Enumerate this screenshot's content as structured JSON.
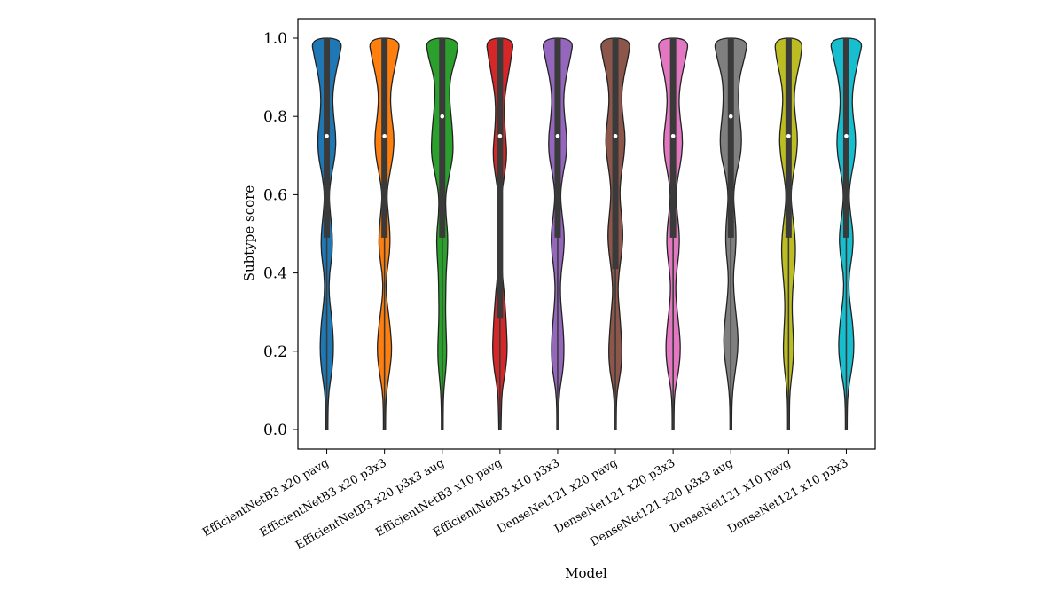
{
  "chart_data": {
    "type": "violin",
    "xlabel": "Model",
    "ylabel": "Subtype score",
    "ylim": [
      -0.05,
      1.05
    ],
    "yticks": [
      0.0,
      0.2,
      0.4,
      0.6,
      0.8,
      1.0
    ],
    "ytick_labels": [
      "0.0",
      "0.2",
      "0.4",
      "0.6",
      "0.8",
      "1.0"
    ],
    "grid": false,
    "legend": "none",
    "categories": [
      "EfficientNetB3 x20 pavg",
      "EfficientNetB3 x20 p3x3",
      "EfficientNetB3 x20 p3x3 aug",
      "EfficientNetB3 x10 pavg",
      "EfficientNetB3 x10 p3x3",
      "DenseNet121 x20 pavg",
      "DenseNet121 x20 p3x3",
      "DenseNet121 x20 p3x3 aug",
      "DenseNet121 x10 pavg",
      "DenseNet121 x10 p3x3"
    ],
    "colors": [
      "#1f77b4",
      "#ff7f0e",
      "#2ca02c",
      "#d62728",
      "#9467bd",
      "#8c564b",
      "#e377c2",
      "#7f7f7f",
      "#bcbd22",
      "#17becf"
    ],
    "density_y": [
      0.0,
      0.05,
      0.1,
      0.15,
      0.2,
      0.25,
      0.3,
      0.35,
      0.4,
      0.45,
      0.5,
      0.55,
      0.6,
      0.65,
      0.7,
      0.75,
      0.8,
      0.85,
      0.9,
      0.95,
      1.0
    ],
    "series": [
      {
        "density": [
          0.06,
          0.06,
          0.12,
          0.3,
          0.38,
          0.35,
          0.24,
          0.12,
          0.15,
          0.32,
          0.32,
          0.2,
          0.12,
          0.26,
          0.48,
          0.52,
          0.38,
          0.32,
          0.45,
          0.7,
          0.9
        ],
        "median": 0.75,
        "q1": 0.49,
        "q3": 1.0
      },
      {
        "density": [
          0.06,
          0.06,
          0.12,
          0.3,
          0.42,
          0.35,
          0.22,
          0.08,
          0.12,
          0.3,
          0.32,
          0.22,
          0.12,
          0.28,
          0.5,
          0.55,
          0.4,
          0.32,
          0.46,
          0.72,
          0.9
        ],
        "median": 0.75,
        "q1": 0.49,
        "q3": 1.0
      },
      {
        "density": [
          0.05,
          0.05,
          0.08,
          0.2,
          0.26,
          0.22,
          0.18,
          0.2,
          0.22,
          0.3,
          0.32,
          0.2,
          0.18,
          0.4,
          0.62,
          0.6,
          0.5,
          0.4,
          0.45,
          0.78,
          0.96
        ],
        "median": 0.8,
        "q1": 0.49,
        "q3": 1.0
      },
      {
        "density": [
          0.06,
          0.08,
          0.12,
          0.32,
          0.42,
          0.38,
          0.32,
          0.24,
          0.12,
          0.1,
          0.14,
          0.08,
          0.08,
          0.26,
          0.4,
          0.32,
          0.24,
          0.26,
          0.45,
          0.64,
          0.8
        ],
        "median": 0.75,
        "q1": 0.285,
        "q3": 1.0
      },
      {
        "density": [
          0.05,
          0.05,
          0.1,
          0.3,
          0.36,
          0.32,
          0.22,
          0.14,
          0.18,
          0.34,
          0.38,
          0.24,
          0.14,
          0.28,
          0.5,
          0.52,
          0.38,
          0.32,
          0.46,
          0.72,
          0.9
        ],
        "median": 0.75,
        "q1": 0.49,
        "q3": 1.0
      },
      {
        "density": [
          0.05,
          0.05,
          0.1,
          0.32,
          0.38,
          0.32,
          0.24,
          0.14,
          0.2,
          0.36,
          0.44,
          0.34,
          0.24,
          0.32,
          0.5,
          0.56,
          0.42,
          0.34,
          0.46,
          0.72,
          0.88
        ],
        "median": 0.75,
        "q1": 0.41,
        "q3": 1.0
      },
      {
        "density": [
          0.05,
          0.05,
          0.1,
          0.32,
          0.42,
          0.36,
          0.24,
          0.14,
          0.18,
          0.34,
          0.36,
          0.24,
          0.14,
          0.28,
          0.5,
          0.54,
          0.38,
          0.32,
          0.46,
          0.72,
          0.9
        ],
        "median": 0.75,
        "q1": 0.49,
        "q3": 1.0
      },
      {
        "density": [
          0.05,
          0.05,
          0.1,
          0.25,
          0.4,
          0.4,
          0.28,
          0.16,
          0.14,
          0.26,
          0.3,
          0.22,
          0.14,
          0.28,
          0.56,
          0.62,
          0.48,
          0.42,
          0.48,
          0.78,
          0.98
        ],
        "median": 0.8,
        "q1": 0.49,
        "q3": 1.0
      },
      {
        "density": [
          0.05,
          0.05,
          0.08,
          0.22,
          0.3,
          0.26,
          0.2,
          0.22,
          0.32,
          0.4,
          0.36,
          0.22,
          0.12,
          0.26,
          0.46,
          0.52,
          0.38,
          0.3,
          0.44,
          0.7,
          0.8
        ],
        "median": 0.75,
        "q1": 0.49,
        "q3": 1.0
      },
      {
        "density": [
          0.05,
          0.05,
          0.1,
          0.3,
          0.44,
          0.4,
          0.28,
          0.14,
          0.16,
          0.36,
          0.4,
          0.24,
          0.14,
          0.28,
          0.5,
          0.54,
          0.38,
          0.32,
          0.46,
          0.72,
          0.96
        ],
        "median": 0.75,
        "q1": 0.49,
        "q3": 1.0
      }
    ]
  }
}
